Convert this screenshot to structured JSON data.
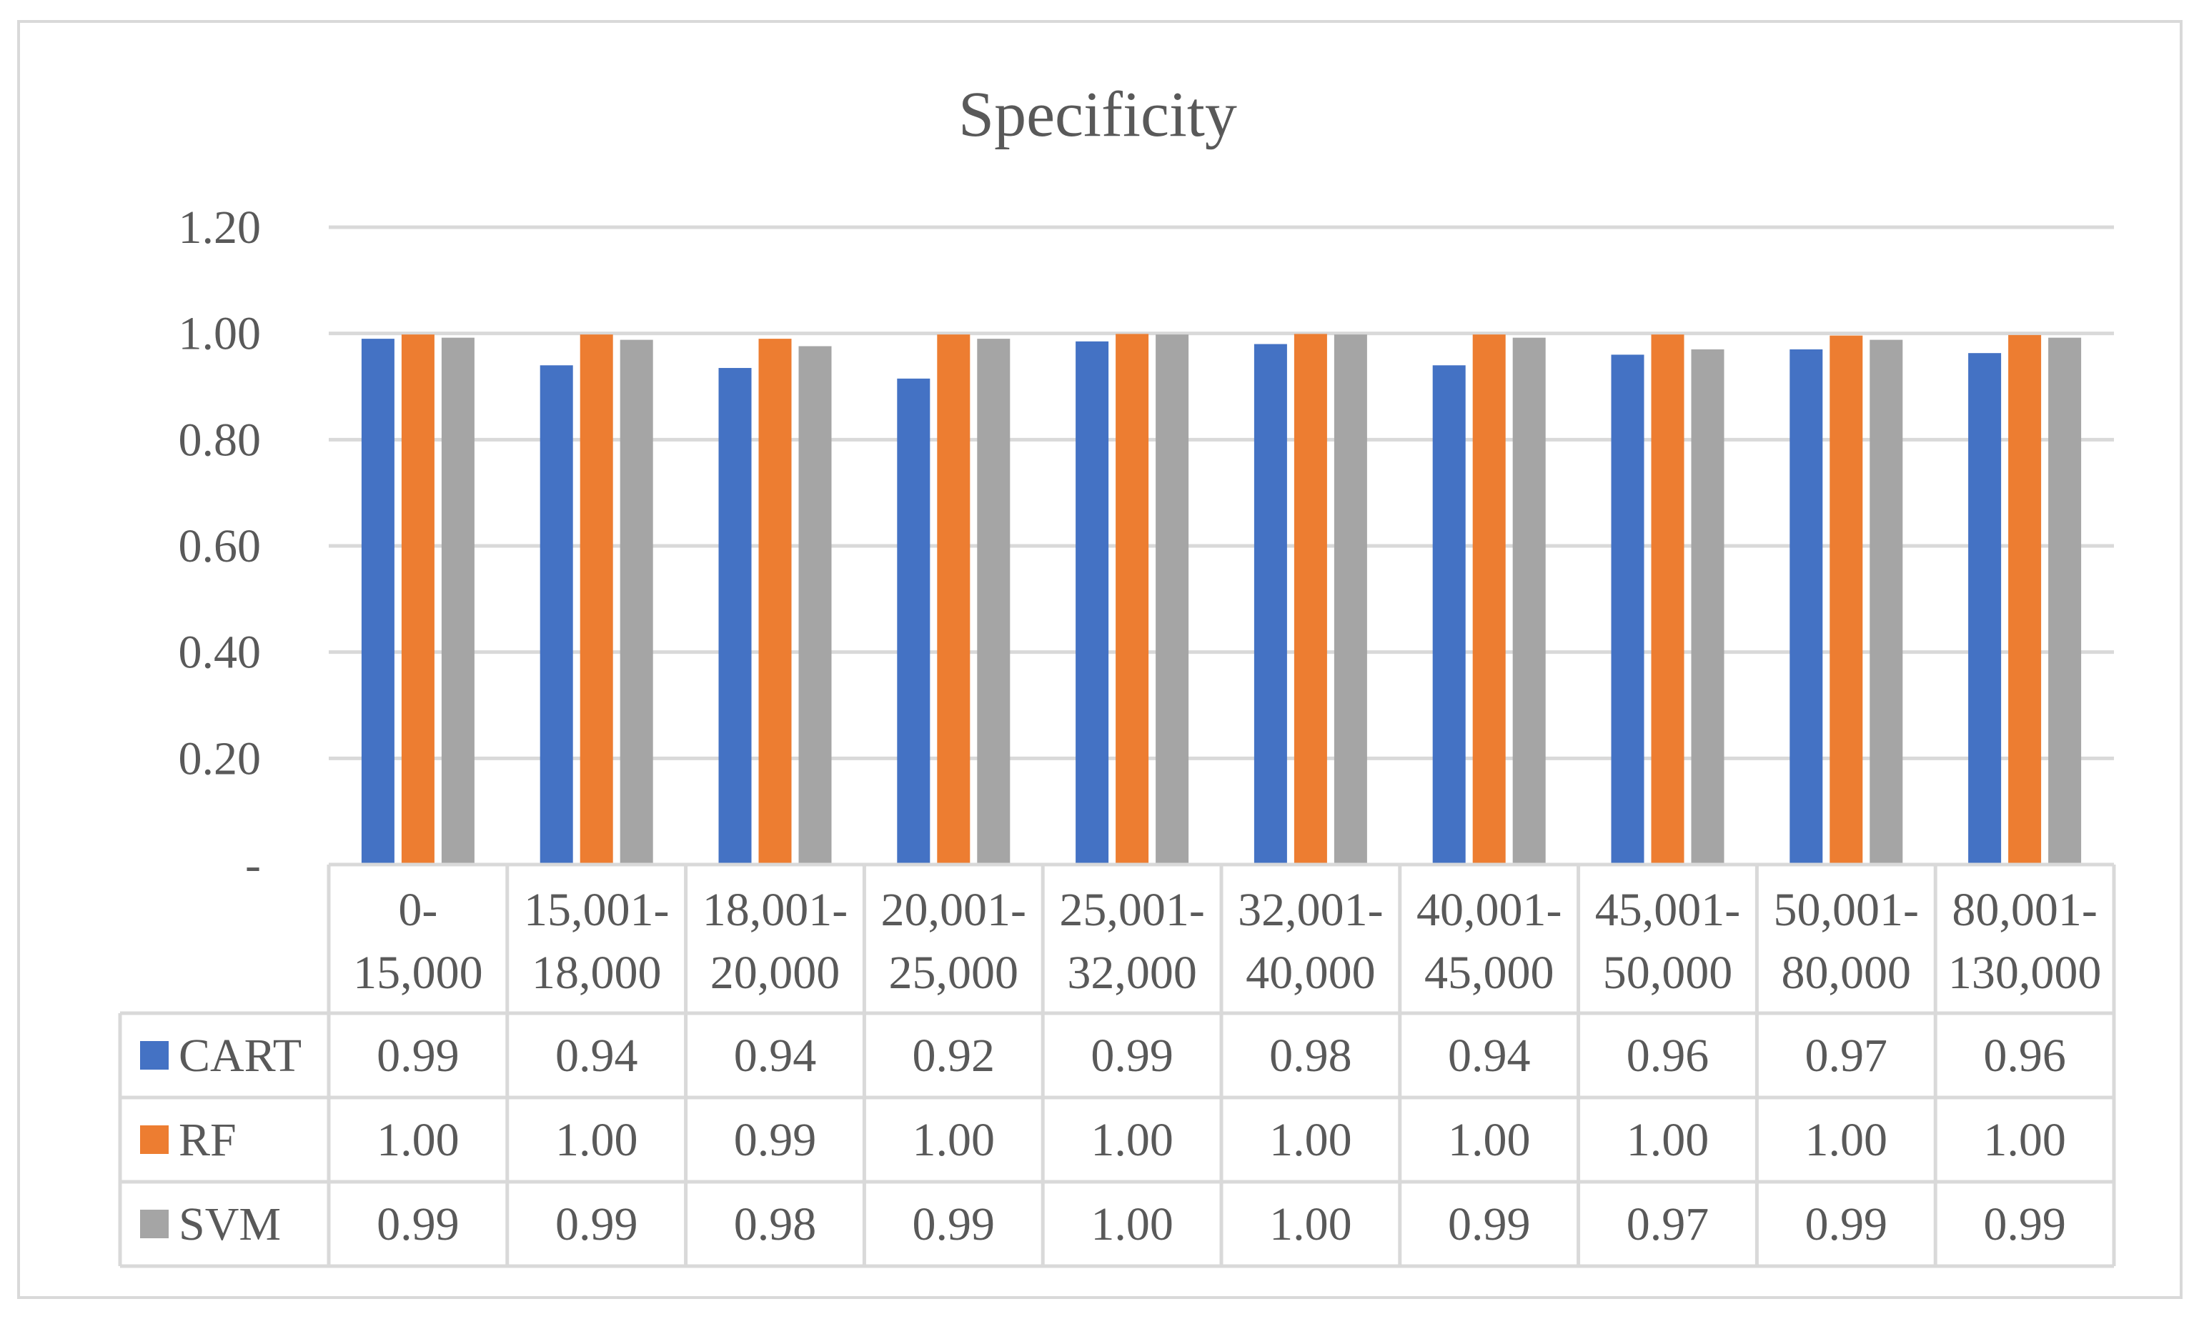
{
  "chart_data": {
    "type": "bar",
    "title": "Specificity",
    "xlabel": "",
    "ylabel": "",
    "ylim": [
      0,
      1.2
    ],
    "yticks": [
      0,
      0.2,
      0.4,
      0.6,
      0.8,
      1.0,
      1.2
    ],
    "ytick_labels": [
      "-",
      "0.20",
      "0.40",
      "0.60",
      "0.80",
      "1.00",
      "1.20"
    ],
    "gridlines": true,
    "legend": "data-table",
    "categories": [
      [
        "0-",
        "15,000"
      ],
      [
        "15,001-",
        "18,000"
      ],
      [
        "18,001-",
        "20,000"
      ],
      [
        "20,001-",
        "25,000"
      ],
      [
        "25,001-",
        "32,000"
      ],
      [
        "32,001-",
        "40,000"
      ],
      [
        "40,001-",
        "45,000"
      ],
      [
        "45,001-",
        "50,000"
      ],
      [
        "50,001-",
        "80,000"
      ],
      [
        "80,001-",
        "130,000"
      ]
    ],
    "series": [
      {
        "name": "CART",
        "color": "#4472C4",
        "values": [
          0.99,
          0.94,
          0.935,
          0.915,
          0.985,
          0.98,
          0.94,
          0.96,
          0.97,
          0.963
        ],
        "labels": [
          "0.99",
          "0.94",
          "0.94",
          "0.92",
          "0.99",
          "0.98",
          "0.94",
          "0.96",
          "0.97",
          "0.96"
        ]
      },
      {
        "name": "RF",
        "color": "#ED7D31",
        "values": [
          0.998,
          0.998,
          0.99,
          0.998,
          0.999,
          0.999,
          0.998,
          0.998,
          0.996,
          0.997
        ],
        "labels": [
          "1.00",
          "1.00",
          "0.99",
          "1.00",
          "1.00",
          "1.00",
          "1.00",
          "1.00",
          "1.00",
          "1.00"
        ]
      },
      {
        "name": "SVM",
        "color": "#A5A5A5",
        "values": [
          0.992,
          0.988,
          0.976,
          0.99,
          0.998,
          0.998,
          0.992,
          0.97,
          0.988,
          0.992
        ],
        "labels": [
          "0.99",
          "0.99",
          "0.98",
          "0.99",
          "1.00",
          "1.00",
          "0.99",
          "0.97",
          "0.99",
          "0.99"
        ]
      }
    ]
  }
}
